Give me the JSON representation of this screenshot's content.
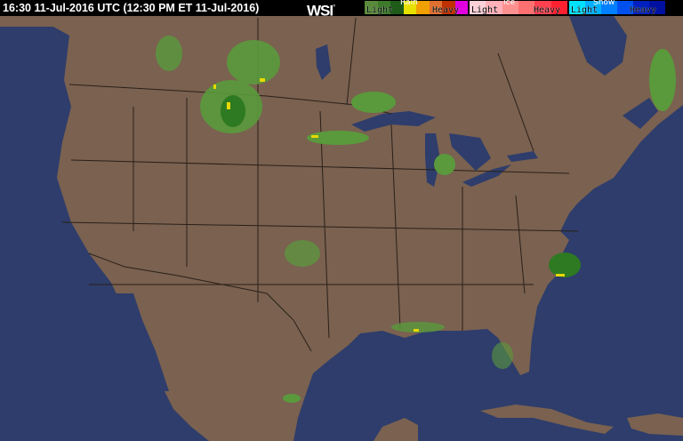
{
  "header": {
    "timestamp": "16:30 11-Jul-2016 UTC  (12:30 PM ET 11-Jul-2016)",
    "logo": "WSI",
    "logo_mark": "°"
  },
  "legend": [
    {
      "type": "Rain",
      "light": "Light",
      "heavy": "Heavy",
      "colors": [
        "#5a8a3c",
        "#3d7a2a",
        "#1e5a18",
        "#e8e000",
        "#f0a000",
        "#e07030",
        "#c03000",
        "#e000e0"
      ]
    },
    {
      "type": "Ice",
      "light": "Light",
      "heavy": "Heavy",
      "colors": [
        "#ffd0d8",
        "#ffb0b8",
        "#ff9090",
        "#ff7070",
        "#ff4050",
        "#ff2030"
      ]
    },
    {
      "type": "Snow",
      "light": "Light",
      "heavy": "Heavy",
      "colors": [
        "#00e0ff",
        "#00b0ff",
        "#0080ff",
        "#0050f0",
        "#0020c0",
        "#0010a0"
      ]
    }
  ],
  "colors": {
    "land": "#7a6150",
    "water": "#2e3d6b",
    "border": "#2a2018",
    "rain_light": "#5a9a3c",
    "rain_mod": "#2e7a22",
    "rain_heavy": "#e8d800"
  }
}
